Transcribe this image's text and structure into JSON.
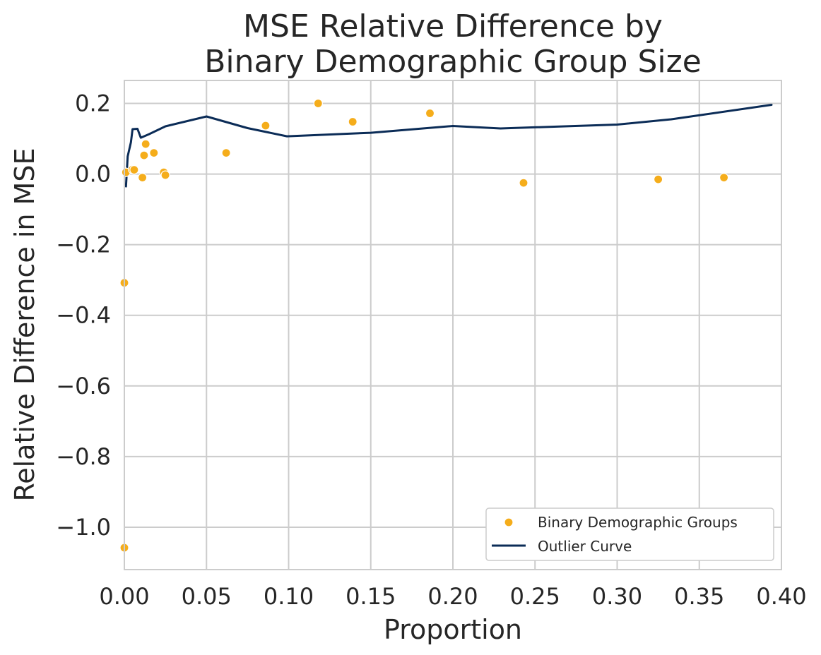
{
  "colors": {
    "points": "#f5ad1b",
    "curve": "#0b2c57",
    "grid": "#cccccc",
    "frame": "#cccccc",
    "text": "#262626"
  },
  "chart_data": {
    "type": "scatter",
    "title_lines": [
      "MSE Relative Difference by",
      "Binary Demographic Group Size"
    ],
    "xlabel": "Proportion",
    "ylabel": "Relative Difference in MSE",
    "xlim": [
      0.0,
      0.4
    ],
    "ylim": [
      -1.12,
      0.265
    ],
    "x_ticks": [
      0.0,
      0.05,
      0.1,
      0.15,
      0.2,
      0.25,
      0.3,
      0.35,
      0.4
    ],
    "x_tick_labels": [
      "0.00",
      "0.05",
      "0.10",
      "0.15",
      "0.20",
      "0.25",
      "0.30",
      "0.35",
      "0.40"
    ],
    "y_ticks": [
      0.2,
      0.0,
      -0.2,
      -0.4,
      -0.6,
      -0.8,
      -1.0
    ],
    "y_tick_labels": [
      "0.2",
      "0.0",
      "−0.2",
      "−0.4",
      "−0.6",
      "−0.8",
      "−1.0"
    ],
    "grid": true,
    "legend_position": "lower-right",
    "series": [
      {
        "name": "Binary Demographic Groups",
        "kind": "scatter",
        "points": [
          {
            "x": 0.0,
            "y": -1.058
          },
          {
            "x": 0.0,
            "y": -0.308
          },
          {
            "x": 0.001,
            "y": 0.005
          },
          {
            "x": 0.005,
            "y": 0.013
          },
          {
            "x": 0.006,
            "y": 0.012
          },
          {
            "x": 0.011,
            "y": -0.01
          },
          {
            "x": 0.012,
            "y": 0.053
          },
          {
            "x": 0.013,
            "y": 0.085
          },
          {
            "x": 0.018,
            "y": 0.06
          },
          {
            "x": 0.024,
            "y": 0.005
          },
          {
            "x": 0.025,
            "y": -0.003
          },
          {
            "x": 0.062,
            "y": 0.06
          },
          {
            "x": 0.086,
            "y": 0.137
          },
          {
            "x": 0.118,
            "y": 0.2
          },
          {
            "x": 0.139,
            "y": 0.148
          },
          {
            "x": 0.186,
            "y": 0.172
          },
          {
            "x": 0.243,
            "y": -0.025
          },
          {
            "x": 0.325,
            "y": -0.015
          },
          {
            "x": 0.365,
            "y": -0.01
          }
        ]
      },
      {
        "name": "Outlier Curve",
        "kind": "line",
        "points": [
          {
            "x": 0.001,
            "y": -0.035
          },
          {
            "x": 0.002,
            "y": 0.05
          },
          {
            "x": 0.004,
            "y": 0.09
          },
          {
            "x": 0.005,
            "y": 0.127
          },
          {
            "x": 0.008,
            "y": 0.128
          },
          {
            "x": 0.01,
            "y": 0.103
          },
          {
            "x": 0.015,
            "y": 0.113
          },
          {
            "x": 0.025,
            "y": 0.135
          },
          {
            "x": 0.05,
            "y": 0.163
          },
          {
            "x": 0.075,
            "y": 0.13
          },
          {
            "x": 0.099,
            "y": 0.107
          },
          {
            "x": 0.15,
            "y": 0.117
          },
          {
            "x": 0.2,
            "y": 0.136
          },
          {
            "x": 0.229,
            "y": 0.129
          },
          {
            "x": 0.3,
            "y": 0.14
          },
          {
            "x": 0.333,
            "y": 0.155
          },
          {
            "x": 0.394,
            "y": 0.196
          }
        ]
      }
    ]
  }
}
